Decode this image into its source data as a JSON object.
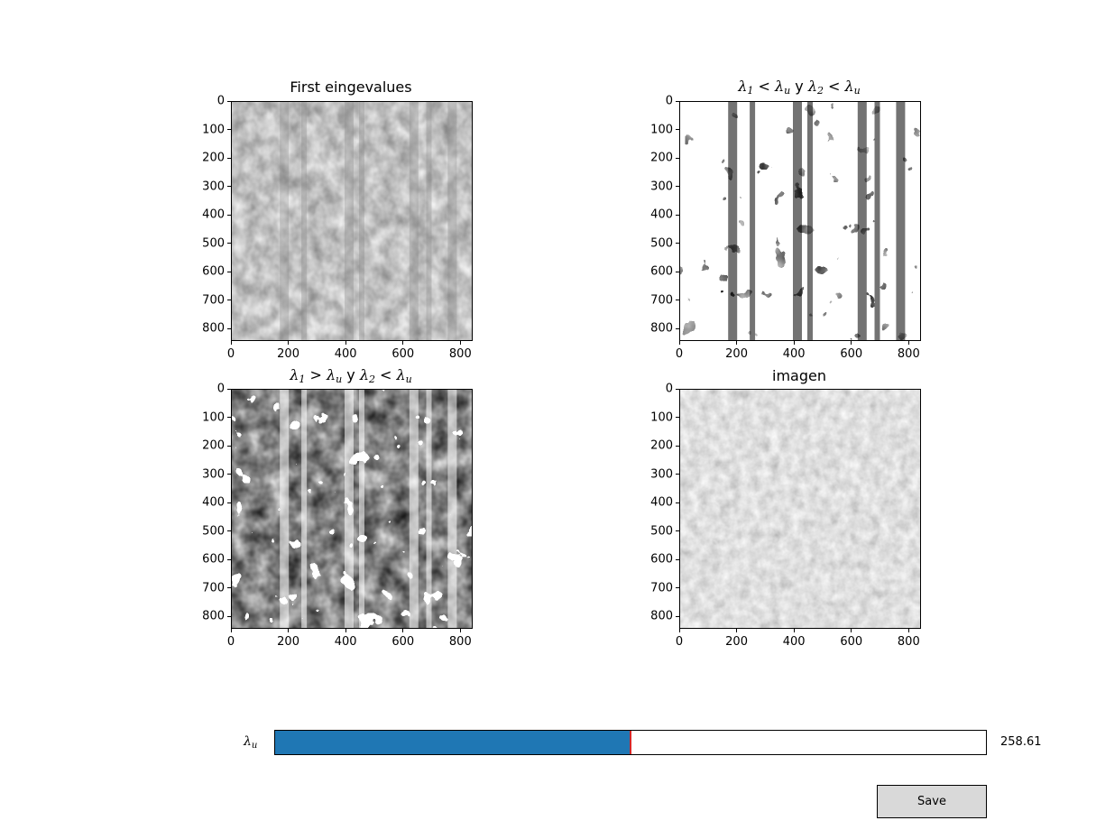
{
  "figure": {
    "panels": [
      {
        "id": "first-eigenvalues",
        "title_text": "First eingevalues",
        "xticks": [
          "0",
          "200",
          "400",
          "600",
          "800"
        ],
        "yticks": [
          "0",
          "100",
          "200",
          "300",
          "400",
          "500",
          "600",
          "700",
          "800"
        ],
        "style": "dark-gray-texture"
      },
      {
        "id": "lambda-lt-lt",
        "title_parts": [
          "λ",
          "1",
          " < ",
          "λ",
          "u",
          " y ",
          "λ",
          "2",
          " < ",
          "λ",
          "u"
        ],
        "xticks": [
          "0",
          "200",
          "400",
          "600",
          "800"
        ],
        "yticks": [
          "0",
          "100",
          "200",
          "300",
          "400",
          "500",
          "600",
          "700",
          "800"
        ],
        "style": "binary-mostly-white"
      },
      {
        "id": "lambda-gt-lt",
        "title_parts": [
          "λ",
          "1",
          " > ",
          "λ",
          "u",
          " y ",
          "λ",
          "2",
          " < ",
          "λ",
          "u"
        ],
        "xticks": [
          "0",
          "200",
          "400",
          "600",
          "800"
        ],
        "yticks": [
          "0",
          "100",
          "200",
          "300",
          "400",
          "500",
          "600",
          "700",
          "800"
        ],
        "style": "binary-mostly-black"
      },
      {
        "id": "imagen",
        "title_text": "imagen",
        "xticks": [
          "0",
          "200",
          "400",
          "600",
          "800"
        ],
        "yticks": [
          "0",
          "100",
          "200",
          "300",
          "400",
          "500",
          "600",
          "700",
          "800"
        ],
        "style": "gray-granulation"
      }
    ]
  },
  "slider": {
    "label_symbol": "λ",
    "label_sub": "u",
    "value_text": "258.61",
    "fraction": 0.5,
    "fill_color": "#1f77b4",
    "handle_color": "#d62728"
  },
  "save_button": {
    "label": "Save"
  }
}
